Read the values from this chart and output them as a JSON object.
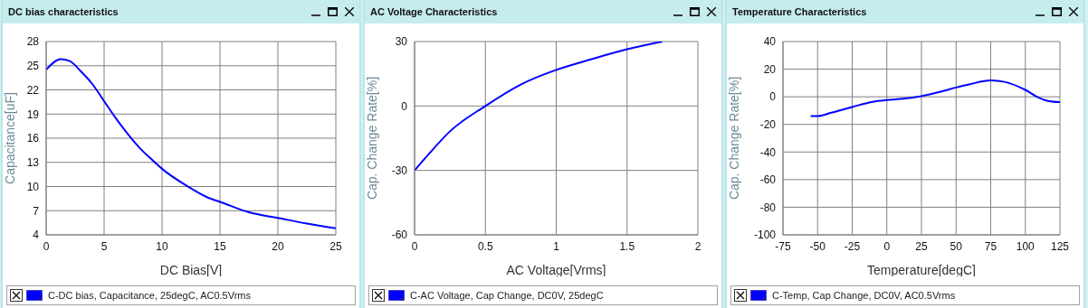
{
  "chart_data": [
    {
      "type": "line",
      "title": "DC bias characteristics",
      "xlabel": "DC Bias[V]",
      "ylabel": "Capacitance[uF]",
      "x": [
        0,
        1.25,
        2,
        3,
        4,
        5,
        6,
        7,
        8,
        9,
        10,
        12,
        14,
        15,
        17.5,
        20,
        22.5,
        25
      ],
      "series": [
        {
          "name": "C-DC bias, Capacitance, 25degC, AC0.5Vrms",
          "color": "#0000ff",
          "values": [
            24.5,
            25.8,
            25.6,
            24.3,
            22.7,
            20.6,
            18.5,
            16.6,
            14.9,
            13.5,
            12.2,
            10.2,
            8.6,
            8.1,
            6.8,
            6.1,
            5.4,
            4.8
          ]
        }
      ],
      "xlim": [
        0,
        25
      ],
      "xticks": [
        0,
        5,
        10,
        15,
        20,
        25
      ],
      "ylim": [
        4,
        28
      ],
      "yticks": [
        4,
        7,
        10,
        13,
        16,
        19,
        22,
        25,
        28
      ],
      "grid": true,
      "legend": "bottom"
    },
    {
      "type": "line",
      "title": "AC Voltage Characteristics",
      "xlabel": "AC Voltage[Vrms]",
      "ylabel": "Cap. Change Rate[%]",
      "x": [
        0,
        0.1,
        0.25,
        0.5,
        0.75,
        1,
        1.25,
        1.5,
        1.75
      ],
      "series": [
        {
          "name": "C-AC Voltage, Cap Change, DC0V, 25degC",
          "color": "#0000ff",
          "values": [
            -30,
            -22.4,
            -11.8,
            0,
            10,
            16.8,
            21.8,
            26.4,
            30
          ]
        }
      ],
      "xlim": [
        0,
        2
      ],
      "xticks": [
        0,
        0.5,
        1,
        1.5,
        2
      ],
      "ylim": [
        -60,
        30
      ],
      "yticks": [
        -60,
        -30,
        0,
        30
      ],
      "grid": true,
      "legend": "bottom"
    },
    {
      "type": "line",
      "title": "Temperature Characteristics",
      "xlabel": "Temperature[degC]",
      "ylabel": "Cap. Change Rate[%]",
      "x": [
        -55,
        -50,
        -40,
        -25,
        -10,
        0,
        10,
        25,
        40,
        50,
        60,
        75,
        85,
        100,
        110,
        117,
        125
      ],
      "series": [
        {
          "name": "C-Temp, Cap Change, DC0V, AC0.5Vrms",
          "color": "#0000ff",
          "values": [
            -13.9,
            -14,
            -11.5,
            -7.4,
            -3.6,
            -2.4,
            -1.6,
            0.5,
            4,
            6.7,
            9.1,
            11.8,
            10.8,
            5,
            -0.8,
            -3.2,
            -3.9
          ]
        }
      ],
      "xlim": [
        -75,
        125
      ],
      "xticks": [
        -75,
        -50,
        -25,
        0,
        25,
        50,
        75,
        100,
        125
      ],
      "ylim": [
        -100,
        40
      ],
      "yticks": [
        -100,
        -80,
        -60,
        -40,
        -20,
        0,
        20,
        40
      ],
      "grid": true,
      "legend": "bottom"
    }
  ]
}
